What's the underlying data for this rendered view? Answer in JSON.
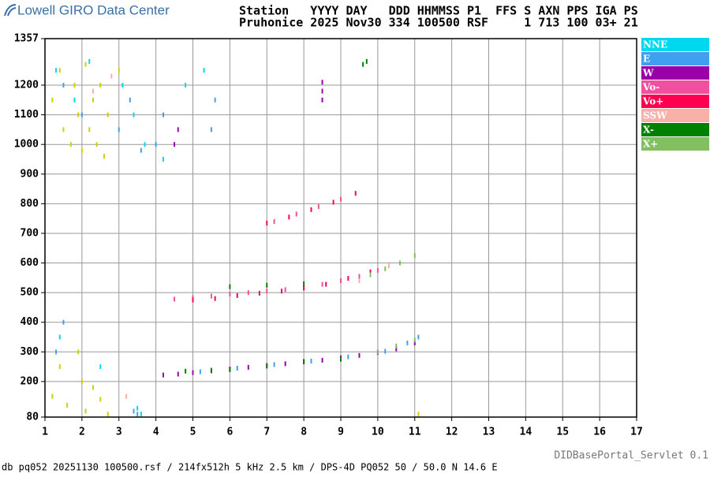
{
  "header": {
    "logo": "Lowell GIRO Data Center",
    "line1": "Station   YYYY DAY   DDD HHMMSS P1  FFS S AXN PPS IGA PS",
    "line2": "Pruhonice 2025 Nov30 334 100500 RSF     1 713 100 03+ 21"
  },
  "footer": {
    "left": "db pq052 20251130 100500.rsf / 214fx512h 5 kHz 2.5 km / DPS-4D PQ052 50 / 50.0 N 14.6 E",
    "right": "DIDBasePortal_Servlet 0.1"
  },
  "chart_data": {
    "type": "scatter",
    "grid": true,
    "xlim": [
      1,
      17
    ],
    "xticks": [
      1,
      2,
      3,
      4,
      5,
      6,
      7,
      8,
      9,
      10,
      11,
      12,
      13,
      14,
      15,
      16,
      17
    ],
    "ylim": [
      80,
      1357
    ],
    "yticks": [
      80,
      200,
      300,
      400,
      500,
      600,
      700,
      800,
      900,
      1000,
      1100,
      1200,
      1357
    ],
    "series": [
      {
        "name": "NNE",
        "color": "#00d8f0",
        "x": [
          1.3,
          1.8,
          2.2,
          3.1,
          3.4,
          3.7,
          4.2,
          4.8,
          5.3,
          1.4,
          2.5,
          3.5,
          3.6
        ],
        "values": [
          1250,
          1150,
          1280,
          1200,
          1100,
          1000,
          950,
          1200,
          1250,
          350,
          250,
          110,
          90
        ]
      },
      {
        "name": "E",
        "color": "#40a0f0",
        "x": [
          5.2,
          6.2,
          7.2,
          8.2,
          9.2,
          10.2,
          10.8,
          11.1,
          1.5,
          2,
          3,
          3.3,
          3.6,
          4,
          4.2,
          5.5,
          5.6,
          1.3,
          1.5,
          3.4,
          3.5
        ],
        "values": [
          233,
          245,
          257,
          269,
          283,
          302,
          330,
          350,
          1200,
          1100,
          1050,
          1150,
          980,
          1000,
          1100,
          1050,
          1150,
          300,
          400,
          100,
          90
        ]
      },
      {
        "name": "W",
        "color": "#9900aa",
        "x": [
          4.2,
          4.6,
          5,
          5.5,
          6,
          6.5,
          7,
          7.5,
          8,
          8.5,
          9,
          9.5,
          10,
          10.5,
          11,
          4.5,
          4.6,
          8.5,
          8.5,
          8.5
        ],
        "values": [
          222,
          225,
          230,
          236,
          242,
          248,
          254,
          260,
          266,
          272,
          280,
          288,
          298,
          310,
          330,
          1000,
          1050,
          1150,
          1180,
          1210
        ]
      },
      {
        "name": "Vo-",
        "color": "#f050a0",
        "x": [
          4.5,
          5,
          5.5,
          6,
          6.5,
          7,
          7.5,
          8,
          8.5,
          9,
          9.5,
          10,
          7.2,
          7.8,
          8.4,
          9
        ],
        "values": [
          478,
          483,
          488,
          495,
          500,
          505,
          510,
          518,
          528,
          540,
          555,
          575,
          740,
          765,
          790,
          815
        ]
      },
      {
        "name": "Vo+",
        "color": "#ff0050",
        "x": [
          5,
          5.6,
          6.2,
          6.8,
          7.4,
          8,
          8.6,
          9.2,
          9.8,
          7,
          7.6,
          8.2,
          8.8,
          9.4
        ],
        "values": [
          475,
          480,
          490,
          498,
          505,
          515,
          528,
          548,
          570,
          735,
          755,
          780,
          805,
          835
        ]
      },
      {
        "name": "SSW",
        "color": "#f8b0a8",
        "x": [
          2.3,
          2.8,
          3.2,
          9.5,
          10.3
        ],
        "values": [
          1180,
          1230,
          150,
          540,
          590
        ]
      },
      {
        "name": "X-",
        "color": "#008000",
        "x": [
          4.8,
          5.5,
          6,
          7,
          8,
          9,
          9.6,
          9.7,
          6,
          7,
          8
        ],
        "values": [
          235,
          238,
          240,
          252,
          268,
          275,
          1270,
          1280,
          520,
          525,
          530
        ]
      },
      {
        "name": "X+",
        "color": "#80c060",
        "x": [
          9.8,
          10.2,
          10.6,
          11,
          10,
          10.5,
          11
        ],
        "values": [
          560,
          580,
          600,
          625,
          300,
          320,
          340
        ]
      },
      {
        "color": "#d0d000",
        "x": [
          1.2,
          1.4,
          1.5,
          1.7,
          1.8,
          1.9,
          2.0,
          2.1,
          2.2,
          2.3,
          2.4,
          2.5,
          2.6,
          2.7,
          3.0,
          1.2,
          1.4,
          1.6,
          1.9,
          2.0,
          2.1,
          2.3,
          2.5,
          2.7,
          11.1
        ],
        "values": [
          1150,
          1250,
          1050,
          1000,
          1200,
          1100,
          980,
          1270,
          1050,
          1150,
          1000,
          1200,
          960,
          1100,
          1250,
          150,
          250,
          120,
          300,
          200,
          100,
          180,
          140,
          90,
          90
        ]
      }
    ]
  }
}
